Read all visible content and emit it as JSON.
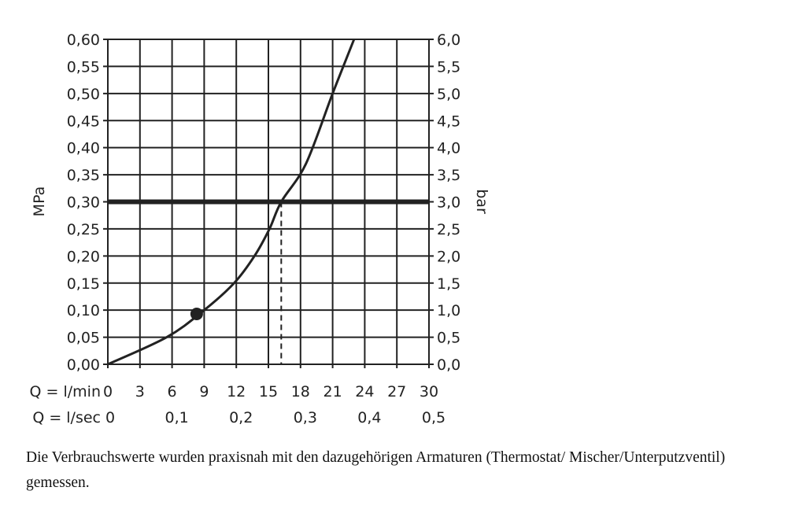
{
  "chart_data": {
    "type": "line",
    "xlabel": "Q = l/min",
    "x2label": "Q = l/sec",
    "ylabel": "MPa",
    "y2label": "bar",
    "xlim": [
      0,
      30
    ],
    "ylim": [
      0,
      0.6
    ],
    "grid": true,
    "x_ticks": [
      "0",
      "3",
      "6",
      "9",
      "12",
      "15",
      "18",
      "21",
      "24",
      "27",
      "30"
    ],
    "x2_ticks": [
      {
        "at": 0,
        "label": "0"
      },
      {
        "at": 6,
        "label": "0,1"
      },
      {
        "at": 12,
        "label": "0,2"
      },
      {
        "at": 18,
        "label": "0,3"
      },
      {
        "at": 24,
        "label": "0,4"
      },
      {
        "at": 30,
        "label": "0,5"
      }
    ],
    "y_ticks": [
      "0,00",
      "0,05",
      "0,10",
      "0,15",
      "0,20",
      "0,25",
      "0,30",
      "0,35",
      "0,40",
      "0,45",
      "0,50",
      "0,55",
      "0,60"
    ],
    "y2_ticks": [
      "0,0",
      "0,5",
      "1,0",
      "1,5",
      "2,0",
      "2,5",
      "3,0",
      "3,5",
      "4,0",
      "4,5",
      "5,0",
      "5,5",
      "6,0"
    ],
    "series": [
      {
        "x": [
          0,
          5.5,
          9,
          11.8,
          13.7,
          15.1,
          16.2,
          18.5,
          21,
          23
        ],
        "y": [
          0,
          0.05,
          0.1,
          0.15,
          0.2,
          0.25,
          0.3,
          0.37,
          0.5,
          0.6
        ]
      }
    ],
    "reference_line_y": 0.3,
    "dashed_line_x": 16.2,
    "marker": {
      "x": 8.3,
      "y": 0.093
    },
    "color": "#222222"
  },
  "caption": "Die Verbrauchswerte wurden praxisnah mit den dazugehörigen Armaturen (Thermostat/ Mischer/Unterputzventil) gemessen."
}
